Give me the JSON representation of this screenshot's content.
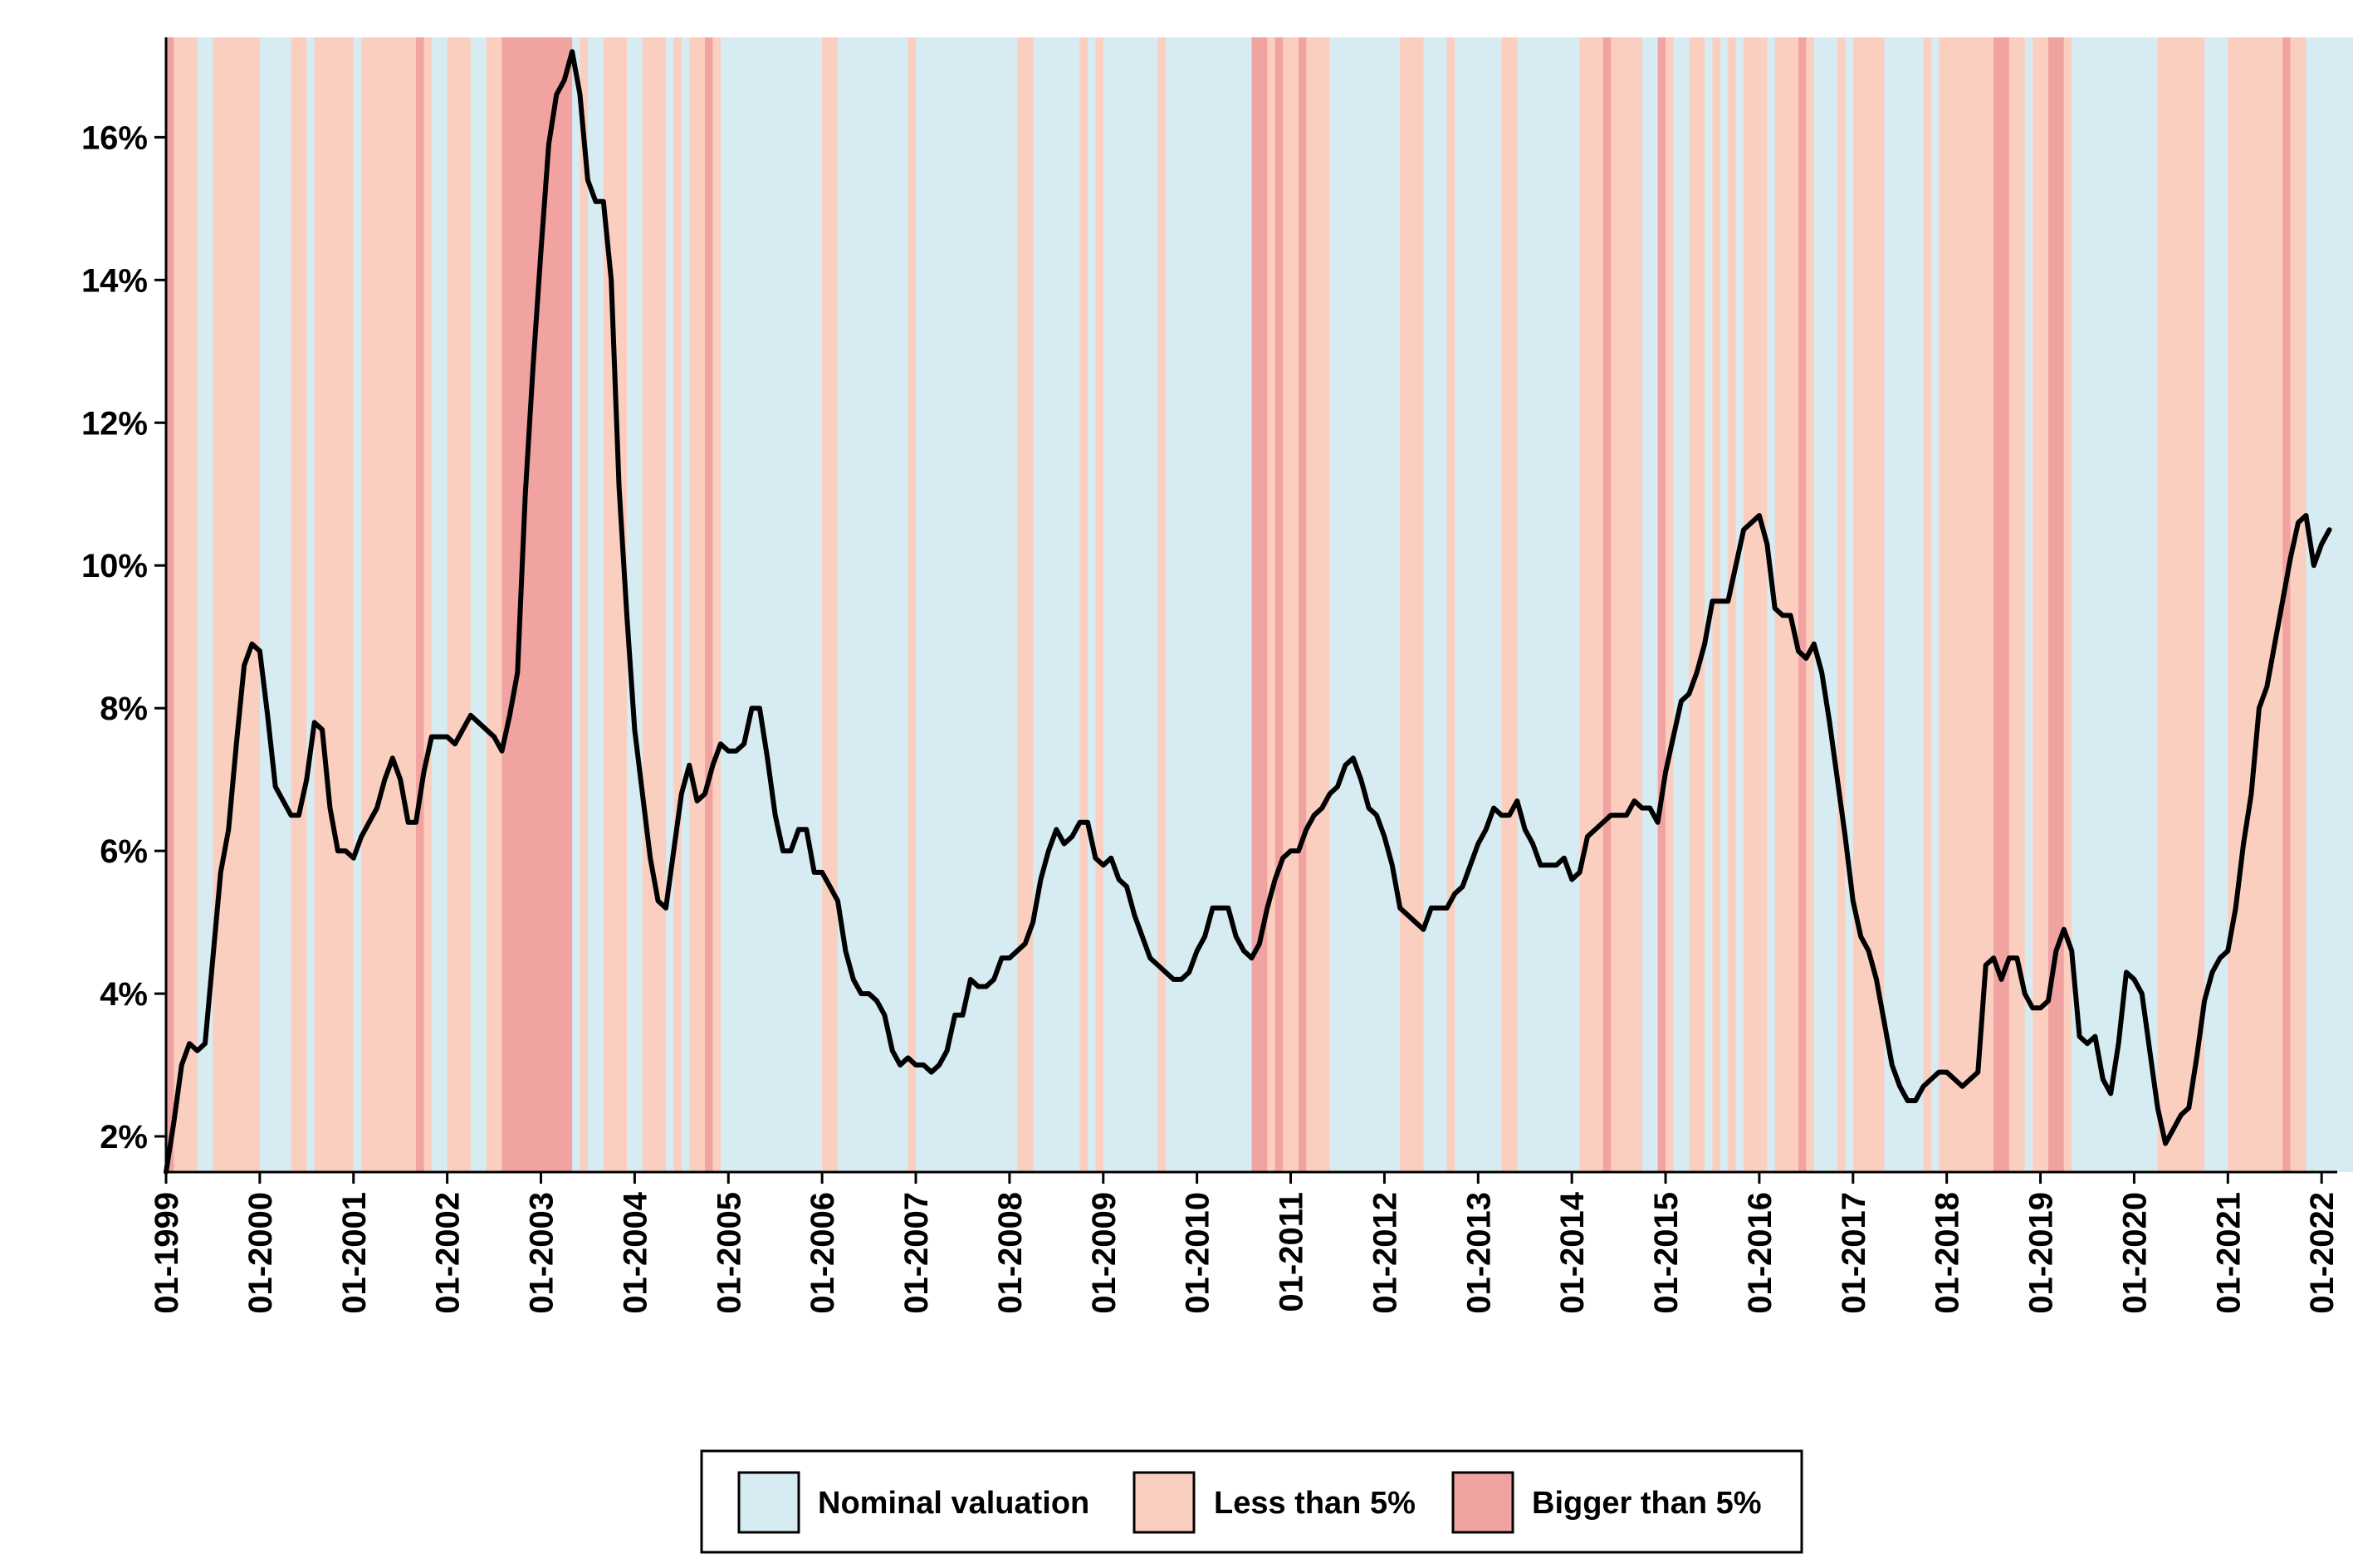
{
  "chart_data": {
    "type": "line",
    "title": "",
    "xlabel": "",
    "ylabel": "",
    "x_start": "1999-01",
    "x_step": "month",
    "xlim": [
      "1999-01",
      "2022-03"
    ],
    "ylim": [
      1.5,
      17.4
    ],
    "y_ticks": [
      2,
      4,
      6,
      8,
      10,
      12,
      14,
      16
    ],
    "y_tick_labels": [
      "2%",
      "4%",
      "6%",
      "8%",
      "10%",
      "12%",
      "14%",
      "16%"
    ],
    "x_ticks": [
      "1999-01",
      "2000-01",
      "2001-01",
      "2002-01",
      "2003-01",
      "2004-01",
      "2005-01",
      "2006-01",
      "2007-01",
      "2008-01",
      "2009-01",
      "2010-01",
      "2011-01",
      "2012-01",
      "2013-01",
      "2014-01",
      "2015-01",
      "2016-01",
      "2017-01",
      "2018-01",
      "2019-01",
      "2020-01",
      "2021-01",
      "2022-01"
    ],
    "x_tick_labels": [
      "01-1999",
      "01-2000",
      "01-2001",
      "01-2002",
      "01-2003",
      "01-2004",
      "01-2005",
      "01-2006",
      "01-2007",
      "01-2008",
      "01-2009",
      "01-2010",
      "01-2011",
      "01-2012",
      "01-2013",
      "01-2014",
      "01-2015",
      "01-2016",
      "01-2017",
      "01-2018",
      "01-2019",
      "01-2020",
      "01-2021",
      "01-2022"
    ],
    "grid": false,
    "legend_position": "bottom",
    "line_color": "#000000",
    "series": [
      {
        "values": [
          1.5,
          2.2,
          3.0,
          3.3,
          3.2,
          3.3,
          4.5,
          5.7,
          6.3,
          7.5,
          8.6,
          8.9,
          8.8,
          7.9,
          6.9,
          6.7,
          6.5,
          6.5,
          7.0,
          7.8,
          7.7,
          6.6,
          6.0,
          6.0,
          5.9,
          6.2,
          6.4,
          6.6,
          7.0,
          7.3,
          7.0,
          6.4,
          6.4,
          7.1,
          7.6,
          7.6,
          7.6,
          7.5,
          7.7,
          7.9,
          7.8,
          7.7,
          7.6,
          7.4,
          7.9,
          8.5,
          11.0,
          12.8,
          14.4,
          15.9,
          16.6,
          16.8,
          17.2,
          16.6,
          15.4,
          15.1,
          15.1,
          14.0,
          11.1,
          9.3,
          7.7,
          6.8,
          5.9,
          5.3,
          5.2,
          6.0,
          6.8,
          7.2,
          6.7,
          6.8,
          7.2,
          7.5,
          7.4,
          7.4,
          7.5,
          8.0,
          8.0,
          7.3,
          6.5,
          6.0,
          6.0,
          6.3,
          6.3,
          5.7,
          5.7,
          5.5,
          5.3,
          4.6,
          4.2,
          4.0,
          4.0,
          3.9,
          3.7,
          3.2,
          3.0,
          3.1,
          3.0,
          3.0,
          2.9,
          3.0,
          3.2,
          3.7,
          3.7,
          4.2,
          4.1,
          4.1,
          4.2,
          4.5,
          4.5,
          4.6,
          4.7,
          5.0,
          5.6,
          6.0,
          6.3,
          6.1,
          6.2,
          6.4,
          6.4,
          5.9,
          5.8,
          5.9,
          5.6,
          5.5,
          5.1,
          4.8,
          4.5,
          4.4,
          4.3,
          4.2,
          4.2,
          4.3,
          4.6,
          4.8,
          5.2,
          5.2,
          5.2,
          4.8,
          4.6,
          4.5,
          4.7,
          5.2,
          5.6,
          5.9,
          6.0,
          6.0,
          6.3,
          6.5,
          6.6,
          6.8,
          6.9,
          7.2,
          7.3,
          7.0,
          6.6,
          6.5,
          6.2,
          5.8,
          5.2,
          5.1,
          5.0,
          4.9,
          5.2,
          5.2,
          5.2,
          5.4,
          5.5,
          5.8,
          6.1,
          6.3,
          6.6,
          6.5,
          6.5,
          6.7,
          6.3,
          6.1,
          5.8,
          5.8,
          5.8,
          5.9,
          5.6,
          5.7,
          6.2,
          6.3,
          6.4,
          6.5,
          6.5,
          6.5,
          6.7,
          6.6,
          6.6,
          6.4,
          7.1,
          7.6,
          8.1,
          8.2,
          8.5,
          8.9,
          9.5,
          9.5,
          9.5,
          10.0,
          10.5,
          10.6,
          10.7,
          10.3,
          9.4,
          9.3,
          9.3,
          8.8,
          8.7,
          8.9,
          8.5,
          7.8,
          7.0,
          6.2,
          5.3,
          4.8,
          4.6,
          4.2,
          3.6,
          3.0,
          2.7,
          2.5,
          2.5,
          2.7,
          2.8,
          2.9,
          2.9,
          2.8,
          2.7,
          2.8,
          2.9,
          4.4,
          4.5,
          4.2,
          4.5,
          4.5,
          4.0,
          3.8,
          3.8,
          3.9,
          4.6,
          4.9,
          4.6,
          3.4,
          3.3,
          3.4,
          2.8,
          2.6,
          3.3,
          4.3,
          4.2,
          4.0,
          3.2,
          2.4,
          1.9,
          2.1,
          2.3,
          2.4,
          3.1,
          3.9,
          4.3,
          4.5,
          4.6,
          5.2,
          6.1,
          6.8,
          8.0,
          8.3,
          8.9,
          9.5,
          10.1,
          10.6,
          10.7,
          10.0,
          10.3,
          10.5
        ]
      }
    ],
    "background_bands": {
      "months": [
        "B",
        "A",
        "A",
        "A",
        "N",
        "N",
        "A",
        "A",
        "A",
        "A",
        "A",
        "A",
        "N",
        "N",
        "N",
        "N",
        "A",
        "A",
        "N",
        "A",
        "A",
        "A",
        "A",
        "A",
        "N",
        "A",
        "A",
        "A",
        "A",
        "A",
        "A",
        "A",
        "B",
        "A",
        "N",
        "N",
        "A",
        "A",
        "A",
        "N",
        "N",
        "A",
        "A",
        "B",
        "B",
        "B",
        "B",
        "B",
        "B",
        "B",
        "B",
        "B",
        "N",
        "A",
        "N",
        "N",
        "A",
        "A",
        "A",
        "N",
        "N",
        "A",
        "A",
        "A",
        "N",
        "A",
        "N",
        "A",
        "A",
        "B",
        "A",
        "N",
        "N",
        "N",
        "N",
        "N",
        "N",
        "N",
        "N",
        "N",
        "N",
        "N",
        "N",
        "N",
        "A",
        "A",
        "N",
        "N",
        "N",
        "N",
        "N",
        "N",
        "N",
        "N",
        "N",
        "A",
        "N",
        "N",
        "N",
        "N",
        "N",
        "N",
        "N",
        "N",
        "N",
        "N",
        "N",
        "N",
        "N",
        "A",
        "A",
        "N",
        "N",
        "N",
        "N",
        "N",
        "N",
        "A",
        "N",
        "A",
        "N",
        "N",
        "N",
        "N",
        "N",
        "N",
        "N",
        "A",
        "N",
        "N",
        "N",
        "N",
        "N",
        "N",
        "N",
        "N",
        "N",
        "N",
        "N",
        "B",
        "B",
        "A",
        "B",
        "A",
        "A",
        "B",
        "A",
        "A",
        "A",
        "N",
        "N",
        "N",
        "N",
        "N",
        "N",
        "N",
        "N",
        "N",
        "A",
        "A",
        "A",
        "N",
        "N",
        "N",
        "A",
        "N",
        "N",
        "N",
        "N",
        "N",
        "N",
        "A",
        "A",
        "N",
        "N",
        "N",
        "N",
        "N",
        "N",
        "N",
        "N",
        "A",
        "A",
        "A",
        "B",
        "A",
        "A",
        "A",
        "A",
        "N",
        "N",
        "B",
        "A",
        "N",
        "N",
        "A",
        "A",
        "N",
        "A",
        "N",
        "A",
        "N",
        "A",
        "A",
        "A",
        "N",
        "A",
        "A",
        "A",
        "B",
        "A",
        "N",
        "N",
        "N",
        "A",
        "N",
        "A",
        "A",
        "A",
        "A",
        "N",
        "N",
        "N",
        "N",
        "N",
        "A",
        "N",
        "A",
        "A",
        "A",
        "A",
        "A",
        "A",
        "A",
        "B",
        "B",
        "A",
        "A",
        "N",
        "A",
        "A",
        "B",
        "B",
        "A",
        "N",
        "N",
        "N",
        "N",
        "N",
        "N",
        "N",
        "N",
        "N",
        "N",
        "N",
        "A",
        "A",
        "A",
        "A",
        "A",
        "A",
        "N",
        "N",
        "N",
        "A",
        "A",
        "A",
        "A",
        "A",
        "A",
        "A",
        "B",
        "A",
        "A",
        "N",
        "N",
        "N",
        "N",
        "N",
        "N",
        "A",
        "A",
        "N",
        "N",
        "B",
        "B",
        "N",
        "A",
        "N",
        "A",
        "A",
        "N",
        "N",
        "A",
        "A",
        "N",
        "A",
        "A",
        "A",
        "B",
        "B",
        "B",
        "N",
        "A",
        "A",
        "N",
        "A",
        "A",
        "A",
        "N",
        "N",
        "N",
        "A",
        "A",
        "A",
        "A",
        "A",
        "A",
        "A",
        "A",
        "B",
        "A"
      ],
      "legend": [
        {
          "key": "N",
          "label": "Nominal valuation",
          "color": "#d7ebf2"
        },
        {
          "key": "A",
          "label": "Less than 5%",
          "color": "#fbcfbf"
        },
        {
          "key": "B",
          "label": "Bigger than 5%",
          "color": "#f1a3a1"
        }
      ]
    }
  }
}
